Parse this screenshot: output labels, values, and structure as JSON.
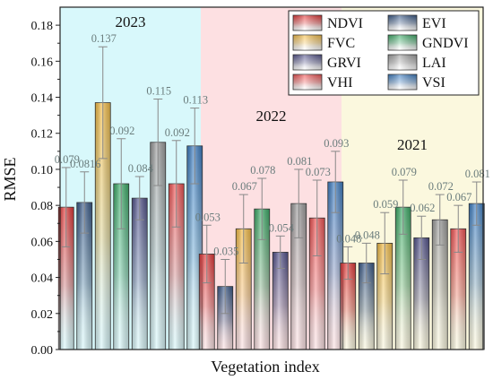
{
  "chart_data": {
    "type": "bar",
    "xlabel": "Vegetation index",
    "ylabel": "RMSE",
    "ylim": [
      0,
      0.19
    ],
    "yticks": [
      "0.00",
      "0.02",
      "0.04",
      "0.06",
      "0.08",
      "0.10",
      "0.12",
      "0.14",
      "0.16",
      "0.18"
    ],
    "categories": [
      "NDVI",
      "EVI",
      "FVC",
      "GNDVI",
      "GRVI",
      "LAI",
      "VHI",
      "VSI"
    ],
    "series_colors": {
      "NDVI": "#e53a3a",
      "EVI": "#3b5b8a",
      "FVC": "#f7c04a",
      "GNDVI": "#3fae6a",
      "GRVI": "#55558e",
      "LAI": "#a0a0a0",
      "VHI": "#f25555",
      "VSI": "#3f7fc4"
    },
    "legend_position": "top-right",
    "groups": [
      {
        "name": "2023",
        "background": "#d8f8fb",
        "values": [
          0.079,
          0.0816,
          0.137,
          0.092,
          0.084,
          0.115,
          0.092,
          0.113
        ],
        "labels": [
          "0.079",
          "0.0816",
          "0.137",
          "0.092",
          "0.084",
          "0.115",
          "0.092",
          "0.113"
        ],
        "errors": [
          0.022,
          0.017,
          0.031,
          0.025,
          0.012,
          0.024,
          0.024,
          0.021
        ]
      },
      {
        "name": "2022",
        "background": "#fde0e2",
        "values": [
          0.053,
          0.035,
          0.067,
          0.078,
          0.054,
          0.081,
          0.073,
          0.093
        ],
        "labels": [
          "0.053",
          "0.035",
          "0.067",
          "0.078",
          "0.054",
          "0.081",
          "0.073",
          "0.093"
        ],
        "errors": [
          0.016,
          0.015,
          0.019,
          0.017,
          0.009,
          0.019,
          0.021,
          0.017
        ]
      },
      {
        "name": "2021",
        "background": "#fbf8de",
        "values": [
          0.048,
          0.048,
          0.059,
          0.079,
          0.062,
          0.072,
          0.067,
          0.081
        ],
        "labels": [
          "0.048",
          "0.048",
          "0.059",
          "0.079",
          "0.062",
          "0.072",
          "0.067",
          "0.081"
        ],
        "errors": [
          0.009,
          0.011,
          0.017,
          0.015,
          0.012,
          0.014,
          0.013,
          0.012
        ]
      }
    ]
  }
}
